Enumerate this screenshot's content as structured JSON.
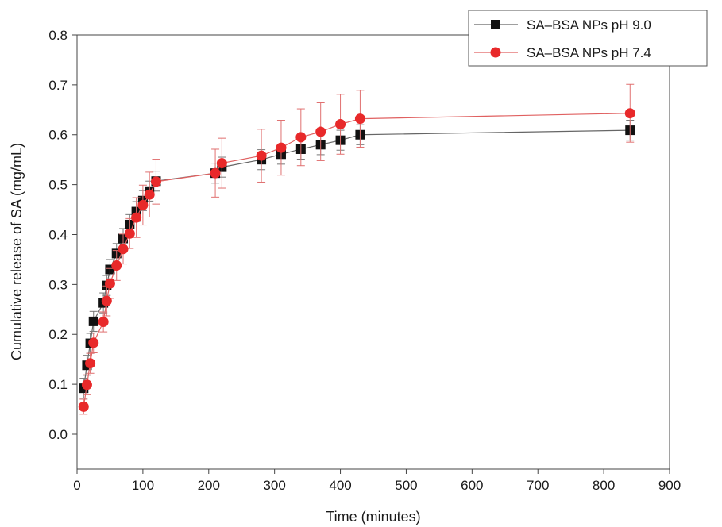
{
  "chart_data": {
    "type": "line",
    "xlabel": "Time (minutes)",
    "ylabel": "Cumulative release of SA (mg/mL)",
    "xlim": [
      0,
      900
    ],
    "ylim": [
      -0.07,
      0.8
    ],
    "xticks": [
      0,
      100,
      200,
      300,
      400,
      500,
      600,
      700,
      800,
      900
    ],
    "yticks": [
      0.0,
      0.1,
      0.2,
      0.3,
      0.4,
      0.5,
      0.6,
      0.7,
      0.8
    ],
    "xtick_labels": [
      "0",
      "100",
      "200",
      "300",
      "400",
      "500",
      "600",
      "700",
      "800",
      "900"
    ],
    "ytick_labels": [
      "0.0",
      "0.1",
      "0.2",
      "0.3",
      "0.4",
      "0.5",
      "0.6",
      "0.7",
      "0.8"
    ],
    "grid": false,
    "legend_position": "top-right",
    "series": [
      {
        "name": "SA–BSA NPs pH 9.0",
        "marker": "square",
        "color": "#111111",
        "line_color": "#666666",
        "x": [
          10,
          15,
          20,
          25,
          40,
          45,
          50,
          60,
          70,
          80,
          90,
          100,
          110,
          120,
          210,
          220,
          280,
          310,
          340,
          370,
          400,
          430,
          840
        ],
        "y": [
          0.092,
          0.138,
          0.182,
          0.226,
          0.263,
          0.298,
          0.33,
          0.362,
          0.392,
          0.42,
          0.446,
          0.468,
          0.487,
          0.507,
          0.523,
          0.535,
          0.55,
          0.561,
          0.571,
          0.58,
          0.589,
          0.6,
          0.609
        ],
        "err": [
          0.02,
          0.02,
          0.02,
          0.02,
          0.02,
          0.02,
          0.02,
          0.02,
          0.02,
          0.02,
          0.02,
          0.02,
          0.02,
          0.02,
          0.02,
          0.02,
          0.02,
          0.02,
          0.02,
          0.02,
          0.02,
          0.02,
          0.02
        ]
      },
      {
        "name": "SA–BSA NPs pH 7.4",
        "marker": "circle",
        "color": "#e8292a",
        "line_color": "#e06060",
        "x": [
          10,
          15,
          20,
          25,
          40,
          45,
          50,
          60,
          70,
          80,
          90,
          100,
          110,
          120,
          210,
          220,
          280,
          310,
          340,
          370,
          400,
          430,
          840
        ],
        "y": [
          0.055,
          0.099,
          0.142,
          0.183,
          0.225,
          0.267,
          0.302,
          0.338,
          0.371,
          0.402,
          0.434,
          0.459,
          0.48,
          0.506,
          0.523,
          0.543,
          0.558,
          0.574,
          0.595,
          0.606,
          0.621,
          0.632,
          0.643
        ],
        "err": [
          0.015,
          0.02,
          0.02,
          0.02,
          0.02,
          0.03,
          0.03,
          0.03,
          0.03,
          0.03,
          0.04,
          0.04,
          0.045,
          0.045,
          0.048,
          0.05,
          0.053,
          0.055,
          0.057,
          0.058,
          0.06,
          0.057,
          0.058
        ]
      }
    ]
  }
}
